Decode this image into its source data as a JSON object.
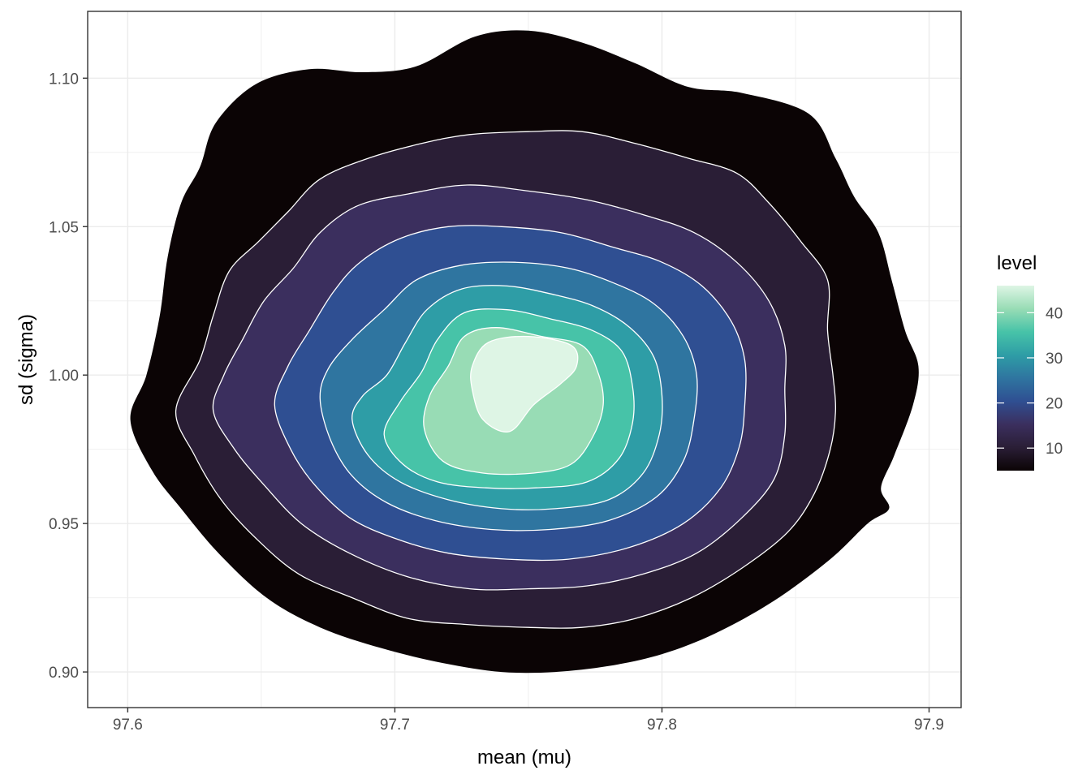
{
  "chart_data": {
    "type": "density_2d_filled",
    "title": "",
    "xlabel": "mean (mu)",
    "ylabel": "sd (sigma)",
    "xlim": [
      97.585,
      97.912
    ],
    "ylim": [
      0.888,
      1.1225
    ],
    "x_ticks": [
      97.6,
      97.7,
      97.8,
      97.9
    ],
    "x_tick_labels": [
      "97.6",
      "97.7",
      "97.8",
      "97.9"
    ],
    "y_ticks": [
      0.9,
      0.95,
      1.0,
      1.05,
      1.1
    ],
    "y_tick_labels": [
      "0.90",
      "0.95",
      "1.00",
      "1.05",
      "1.10"
    ],
    "grid": true,
    "legend": {
      "title": "level",
      "position": "right",
      "range": [
        5,
        46
      ],
      "breaks": [
        10,
        20,
        30,
        40
      ],
      "break_labels": [
        "10",
        "20",
        "30",
        "40"
      ],
      "colors": [
        "#0b0405",
        "#2a1e36",
        "#3b2f5e",
        "#2f4f92",
        "#2f75a0",
        "#2e9da6",
        "#47c3a8",
        "#98dcb5",
        "#def5e5"
      ]
    },
    "peak": {
      "x": 97.745,
      "y": 1.003
    },
    "series": [
      {
        "level_index": 1,
        "color": "#0b0405",
        "points": [
          [
            97.601,
            0.985
          ],
          [
            97.609,
            0.968
          ],
          [
            97.62,
            0.955
          ],
          [
            97.634,
            0.94
          ],
          [
            97.652,
            0.925
          ],
          [
            97.672,
            0.915
          ],
          [
            97.695,
            0.908
          ],
          [
            97.718,
            0.903
          ],
          [
            97.74,
            0.9
          ],
          [
            97.76,
            0.9
          ],
          [
            97.78,
            0.902
          ],
          [
            97.8,
            0.906
          ],
          [
            97.82,
            0.913
          ],
          [
            97.842,
            0.924
          ],
          [
            97.863,
            0.938
          ],
          [
            97.877,
            0.95
          ],
          [
            97.885,
            0.955
          ],
          [
            97.882,
            0.962
          ],
          [
            97.887,
            0.973
          ],
          [
            97.894,
            0.99
          ],
          [
            97.896,
            1.003
          ],
          [
            97.891,
            1.015
          ],
          [
            97.886,
            1.032
          ],
          [
            97.881,
            1.048
          ],
          [
            97.872,
            1.06
          ],
          [
            97.865,
            1.073
          ],
          [
            97.855,
            1.088
          ],
          [
            97.83,
            1.095
          ],
          [
            97.81,
            1.097
          ],
          [
            97.79,
            1.105
          ],
          [
            97.77,
            1.112
          ],
          [
            97.75,
            1.116
          ],
          [
            97.73,
            1.114
          ],
          [
            97.708,
            1.104
          ],
          [
            97.688,
            1.102
          ],
          [
            97.668,
            1.103
          ],
          [
            97.648,
            1.098
          ],
          [
            97.633,
            1.085
          ],
          [
            97.627,
            1.07
          ],
          [
            97.62,
            1.058
          ],
          [
            97.615,
            1.04
          ],
          [
            97.612,
            1.02
          ],
          [
            97.607,
            1.0
          ]
        ]
      },
      {
        "level_index": 2,
        "color": "#2a1e36",
        "points": [
          [
            97.618,
            0.988
          ],
          [
            97.625,
            0.973
          ],
          [
            97.635,
            0.958
          ],
          [
            97.648,
            0.945
          ],
          [
            97.664,
            0.933
          ],
          [
            97.684,
            0.925
          ],
          [
            97.705,
            0.918
          ],
          [
            97.727,
            0.916
          ],
          [
            97.75,
            0.915
          ],
          [
            97.77,
            0.915
          ],
          [
            97.79,
            0.918
          ],
          [
            97.811,
            0.925
          ],
          [
            97.83,
            0.935
          ],
          [
            97.847,
            0.947
          ],
          [
            97.857,
            0.96
          ],
          [
            97.863,
            0.975
          ],
          [
            97.865,
            0.988
          ],
          [
            97.864,
            1.0
          ],
          [
            97.862,
            1.015
          ],
          [
            97.862,
            1.032
          ],
          [
            97.852,
            1.045
          ],
          [
            97.84,
            1.058
          ],
          [
            97.828,
            1.068
          ],
          [
            97.81,
            1.073
          ],
          [
            97.79,
            1.078
          ],
          [
            97.77,
            1.082
          ],
          [
            97.75,
            1.082
          ],
          [
            97.728,
            1.081
          ],
          [
            97.71,
            1.078
          ],
          [
            97.69,
            1.073
          ],
          [
            97.672,
            1.066
          ],
          [
            97.66,
            1.055
          ],
          [
            97.649,
            1.045
          ],
          [
            97.638,
            1.035
          ],
          [
            97.632,
            1.02
          ],
          [
            97.627,
            1.005
          ]
        ]
      },
      {
        "level_index": 3,
        "color": "#3b2f5e",
        "points": [
          [
            97.632,
            0.988
          ],
          [
            97.64,
            0.975
          ],
          [
            97.651,
            0.963
          ],
          [
            97.665,
            0.95
          ],
          [
            97.683,
            0.94
          ],
          [
            97.705,
            0.932
          ],
          [
            97.728,
            0.928
          ],
          [
            97.75,
            0.928
          ],
          [
            97.772,
            0.929
          ],
          [
            97.793,
            0.933
          ],
          [
            97.813,
            0.94
          ],
          [
            97.83,
            0.952
          ],
          [
            97.842,
            0.965
          ],
          [
            97.846,
            0.98
          ],
          [
            97.846,
            0.995
          ],
          [
            97.846,
            1.01
          ],
          [
            97.84,
            1.025
          ],
          [
            97.828,
            1.038
          ],
          [
            97.812,
            1.048
          ],
          [
            97.793,
            1.054
          ],
          [
            97.772,
            1.059
          ],
          [
            97.75,
            1.062
          ],
          [
            97.727,
            1.064
          ],
          [
            97.705,
            1.061
          ],
          [
            97.686,
            1.057
          ],
          [
            97.672,
            1.048
          ],
          [
            97.662,
            1.036
          ],
          [
            97.651,
            1.025
          ],
          [
            97.643,
            1.012
          ],
          [
            97.636,
            1.0
          ]
        ]
      },
      {
        "level_index": 4,
        "color": "#2f4f92",
        "points": [
          [
            97.655,
            0.99
          ],
          [
            97.661,
            0.975
          ],
          [
            97.67,
            0.963
          ],
          [
            97.683,
            0.952
          ],
          [
            97.7,
            0.945
          ],
          [
            97.72,
            0.94
          ],
          [
            97.742,
            0.938
          ],
          [
            97.765,
            0.938
          ],
          [
            97.788,
            0.942
          ],
          [
            97.808,
            0.95
          ],
          [
            97.822,
            0.962
          ],
          [
            97.829,
            0.976
          ],
          [
            97.831,
            0.99
          ],
          [
            97.831,
            1.005
          ],
          [
            97.826,
            1.018
          ],
          [
            97.815,
            1.03
          ],
          [
            97.8,
            1.038
          ],
          [
            97.782,
            1.043
          ],
          [
            97.762,
            1.048
          ],
          [
            97.74,
            1.05
          ],
          [
            97.72,
            1.05
          ],
          [
            97.702,
            1.046
          ],
          [
            97.687,
            1.038
          ],
          [
            97.677,
            1.028
          ],
          [
            97.668,
            1.015
          ],
          [
            97.66,
            1.003
          ]
        ]
      },
      {
        "level_index": 5,
        "color": "#2f75a0",
        "points": [
          [
            97.672,
            0.992
          ],
          [
            97.676,
            0.978
          ],
          [
            97.684,
            0.966
          ],
          [
            97.697,
            0.957
          ],
          [
            97.715,
            0.951
          ],
          [
            97.736,
            0.948
          ],
          [
            97.758,
            0.948
          ],
          [
            97.78,
            0.951
          ],
          [
            97.798,
            0.959
          ],
          [
            97.808,
            0.971
          ],
          [
            97.812,
            0.985
          ],
          [
            97.813,
            1.0
          ],
          [
            97.808,
            1.013
          ],
          [
            97.797,
            1.024
          ],
          [
            97.782,
            1.031
          ],
          [
            97.765,
            1.036
          ],
          [
            97.745,
            1.038
          ],
          [
            97.725,
            1.037
          ],
          [
            97.708,
            1.032
          ],
          [
            97.696,
            1.022
          ],
          [
            97.684,
            1.012
          ],
          [
            97.675,
            1.002
          ]
        ]
      },
      {
        "level_index": 6,
        "color": "#2e9da6",
        "points": [
          [
            97.684,
            0.985
          ],
          [
            97.69,
            0.973
          ],
          [
            97.702,
            0.964
          ],
          [
            97.72,
            0.958
          ],
          [
            97.74,
            0.955
          ],
          [
            97.76,
            0.955
          ],
          [
            97.78,
            0.958
          ],
          [
            97.793,
            0.967
          ],
          [
            97.799,
            0.98
          ],
          [
            97.8,
            0.993
          ],
          [
            97.797,
            1.006
          ],
          [
            97.788,
            1.016
          ],
          [
            97.775,
            1.023
          ],
          [
            97.76,
            1.027
          ],
          [
            97.742,
            1.03
          ],
          [
            97.725,
            1.029
          ],
          [
            97.712,
            1.022
          ],
          [
            97.704,
            1.011
          ],
          [
            97.697,
            1.0
          ],
          [
            97.688,
            0.993
          ]
        ]
      },
      {
        "level_index": 7,
        "color": "#47c3a8",
        "points": [
          [
            97.696,
            0.98
          ],
          [
            97.703,
            0.97
          ],
          [
            97.716,
            0.964
          ],
          [
            97.734,
            0.962
          ],
          [
            97.753,
            0.962
          ],
          [
            97.772,
            0.964
          ],
          [
            97.784,
            0.972
          ],
          [
            97.789,
            0.984
          ],
          [
            97.789,
            0.996
          ],
          [
            97.785,
            1.008
          ],
          [
            97.774,
            1.015
          ],
          [
            97.758,
            1.019
          ],
          [
            97.742,
            1.022
          ],
          [
            97.726,
            1.021
          ],
          [
            97.716,
            1.012
          ],
          [
            97.71,
            1.001
          ],
          [
            97.702,
            0.991
          ]
        ]
      },
      {
        "level_index": 8,
        "color": "#98dcb5",
        "points": [
          [
            97.711,
            0.982
          ],
          [
            97.718,
            0.971
          ],
          [
            97.733,
            0.967
          ],
          [
            97.752,
            0.967
          ],
          [
            97.766,
            0.97
          ],
          [
            97.774,
            0.979
          ],
          [
            97.778,
            0.99
          ],
          [
            97.776,
            1.001
          ],
          [
            97.77,
            1.01
          ],
          [
            97.755,
            1.013
          ],
          [
            97.738,
            1.016
          ],
          [
            97.726,
            1.013
          ],
          [
            97.72,
            1.003
          ],
          [
            97.713,
            0.993
          ]
        ]
      },
      {
        "level_index": 9,
        "color": "#def5e5",
        "points": [
          [
            97.729,
            0.995
          ],
          [
            97.733,
            0.985
          ],
          [
            97.743,
            0.981
          ],
          [
            97.752,
            0.99
          ],
          [
            97.762,
            0.997
          ],
          [
            97.768,
            1.003
          ],
          [
            97.766,
            1.01
          ],
          [
            97.75,
            1.013
          ],
          [
            97.735,
            1.011
          ],
          [
            97.729,
            1.003
          ]
        ]
      }
    ]
  }
}
